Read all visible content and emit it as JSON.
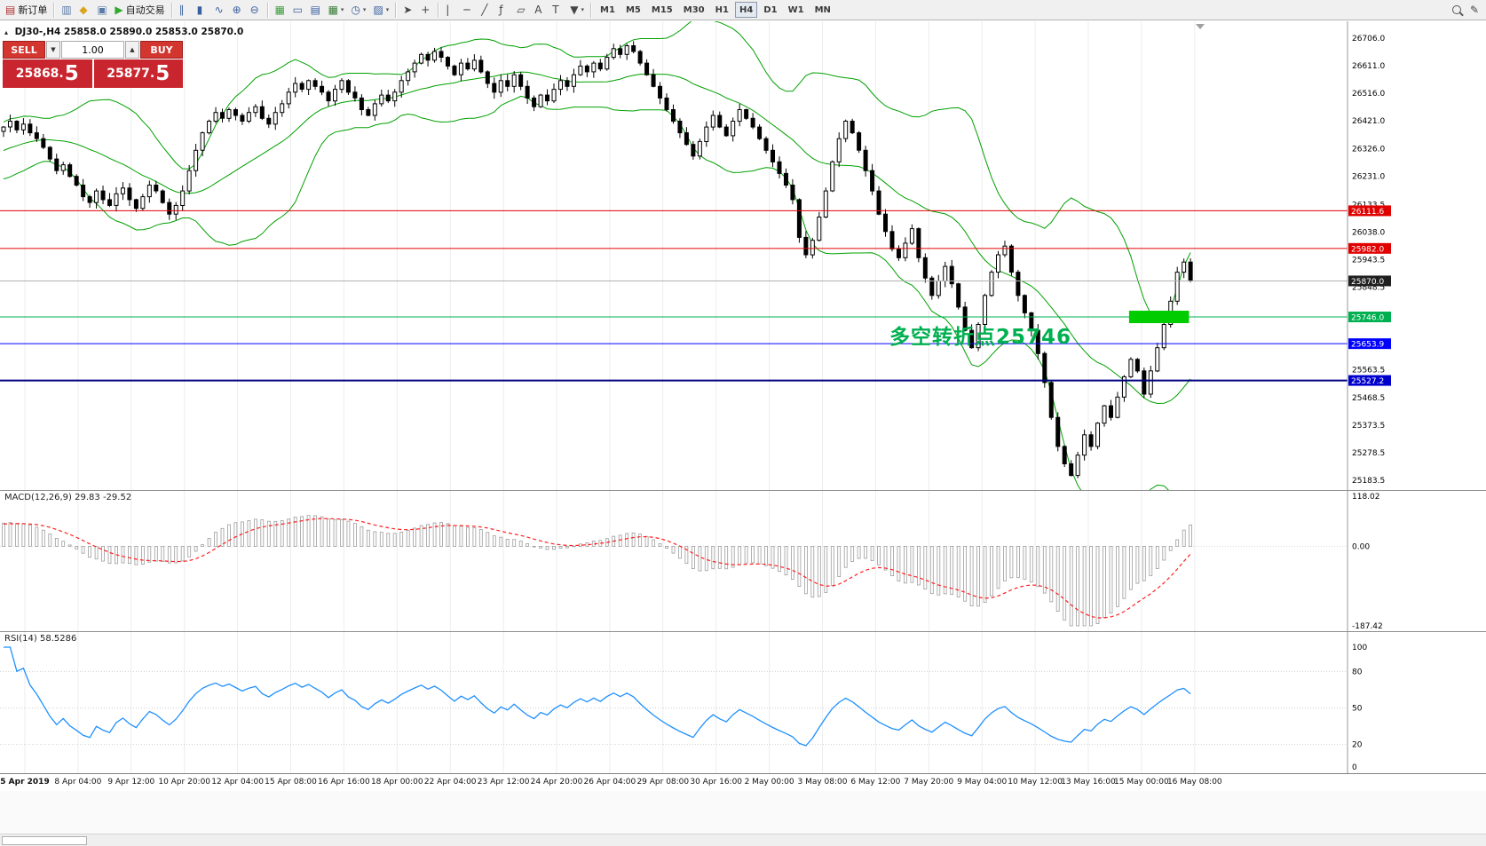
{
  "toolbar": {
    "timeframes": [
      "M1",
      "M5",
      "M15",
      "M30",
      "H1",
      "H4",
      "D1",
      "W1",
      "MN"
    ],
    "active_timeframe": "H4",
    "items": [
      {
        "type": "button",
        "name": "new-order-button",
        "glyph": "▤",
        "glyph_color": "#b03030",
        "label": "新订单"
      },
      {
        "type": "sep"
      },
      {
        "type": "button",
        "name": "market-watch-button",
        "glyph": "▥",
        "glyph_color": "#5a7aa8"
      },
      {
        "type": "button",
        "name": "profiles-button",
        "glyph": "◆",
        "glyph_color": "#d9a520"
      },
      {
        "type": "button",
        "name": "data-window-button",
        "glyph": "▣",
        "glyph_color": "#5a7aa8"
      },
      {
        "type": "button",
        "name": "auto-trading-button",
        "glyph": "▶",
        "glyph_color": "#2faa2f",
        "label": "自动交易"
      },
      {
        "type": "sep"
      },
      {
        "type": "button",
        "name": "bar-chart-button",
        "glyph": "∥",
        "glyph_color": "#3a5fa0"
      },
      {
        "type": "button",
        "name": "candlestick-chart-button",
        "glyph": "▮",
        "glyph_color": "#3a5fa0"
      },
      {
        "type": "button",
        "name": "line-chart-button",
        "glyph": "∿",
        "glyph_color": "#3a5fa0"
      },
      {
        "type": "button",
        "name": "zoom-in-button",
        "glyph": "⊕",
        "glyph_color": "#3a5fa0"
      },
      {
        "type": "button",
        "name": "zoom-out-button",
        "glyph": "⊖",
        "glyph_color": "#3a5fa0"
      },
      {
        "type": "sep"
      },
      {
        "type": "button",
        "name": "tile-windows-button",
        "glyph": "▦",
        "glyph_color": "#3f9e3f"
      },
      {
        "type": "button",
        "name": "cascade-windows-button",
        "glyph": "▭",
        "glyph_color": "#3a5fa0"
      },
      {
        "type": "button",
        "name": "tile-horizontally-button",
        "glyph": "▤",
        "glyph_color": "#3a5fa0"
      },
      {
        "type": "button",
        "name": "new-chart-button",
        "glyph": "▦",
        "glyph_color": "#3a7f3a",
        "caret": true
      },
      {
        "type": "button",
        "name": "periods-button",
        "glyph": "◷",
        "glyph_color": "#3a5fa0",
        "caret": true
      },
      {
        "type": "button",
        "name": "templates-button",
        "glyph": "▨",
        "glyph_color": "#3a5fa0",
        "caret": true
      },
      {
        "type": "sep"
      },
      {
        "type": "button",
        "name": "cursor-button",
        "glyph": "➤",
        "glyph_color": "#444"
      },
      {
        "type": "button",
        "name": "crosshair-button",
        "glyph": "+",
        "glyph_color": "#444"
      },
      {
        "type": "sep"
      },
      {
        "type": "button",
        "name": "vertical-line-button",
        "glyph": "|",
        "glyph_color": "#444"
      },
      {
        "type": "button",
        "name": "horizontal-line-button",
        "glyph": "─",
        "glyph_color": "#444"
      },
      {
        "type": "button",
        "name": "trendline-button",
        "glyph": "╱",
        "glyph_color": "#444"
      },
      {
        "type": "button",
        "name": "fibonacci-button",
        "glyph": "ƒ",
        "glyph_color": "#444"
      },
      {
        "type": "button",
        "name": "channel-button",
        "glyph": "▱",
        "glyph_color": "#444"
      },
      {
        "type": "button",
        "name": "text-button",
        "glyph": "A",
        "glyph_color": "#444"
      },
      {
        "type": "button",
        "name": "label-button",
        "glyph": "T",
        "glyph_color": "#444"
      },
      {
        "type": "button",
        "name": "arrows-button",
        "glyph": "▼",
        "glyph_color": "#444",
        "caret": true
      },
      {
        "type": "sep"
      },
      {
        "type": "timeframes"
      },
      {
        "type": "spacer"
      },
      {
        "type": "search"
      },
      {
        "type": "button",
        "name": "edit-button",
        "glyph": "✎",
        "glyph_color": "#444"
      }
    ]
  },
  "chart_header": {
    "collapse_marker": "▴",
    "symbol": "DJ30-,H4",
    "ohlc": "25858.0 25890.0 25853.0 25870.0"
  },
  "trade_panel": {
    "sell_label": "SELL",
    "buy_label": "BUY",
    "volume": "1.00",
    "spin_down": "▼",
    "spin_up": "▲",
    "sell_price_main": "25868.",
    "sell_price_big": "5",
    "buy_price_main": "25877.",
    "buy_price_big": "5",
    "button_color": "#d3352f",
    "price_panel_color": "#c9252e"
  },
  "annotation": {
    "text": "多空转折点25746",
    "color": "#00b050"
  },
  "chart_data": {
    "type": "candlestick",
    "symbol": "DJ30-",
    "timeframe": "H4",
    "price_axis": {
      "max": 26706.0,
      "min": 25183.5,
      "labels": [
        "26706.0",
        "26611.0",
        "26516.0",
        "26421.0",
        "26326.0",
        "26231.0",
        "26133.5",
        "26038.0",
        "25943.5",
        "25848.5",
        "25753.5",
        "25658.5",
        "25563.5",
        "25468.5",
        "25373.5",
        "25278.5",
        "25183.5"
      ]
    },
    "closes": [
      26400,
      26420,
      26390,
      26410,
      26380,
      26360,
      26330,
      26290,
      26250,
      26270,
      26230,
      26200,
      26160,
      26140,
      26180,
      26150,
      26130,
      26170,
      26190,
      26150,
      26120,
      26160,
      26200,
      26180,
      26140,
      26100,
      26130,
      26180,
      26250,
      26320,
      26380,
      26420,
      26450,
      26430,
      26460,
      26440,
      26420,
      26450,
      26470,
      26430,
      26410,
      26450,
      26480,
      26520,
      26550,
      26530,
      26560,
      26540,
      26520,
      26490,
      26530,
      26560,
      26520,
      26500,
      26460,
      26440,
      26480,
      26510,
      26490,
      26520,
      26560,
      26590,
      26620,
      26650,
      26630,
      26660,
      26640,
      26610,
      26580,
      26620,
      26600,
      26630,
      26590,
      26550,
      26520,
      26560,
      26540,
      26580,
      26540,
      26500,
      26470,
      26510,
      26490,
      26530,
      26560,
      26540,
      26580,
      26610,
      26590,
      26620,
      26600,
      26640,
      26670,
      26650,
      26680,
      26660,
      26620,
      26580,
      26540,
      26500,
      26460,
      26420,
      26380,
      26340,
      26300,
      26350,
      26400,
      26440,
      26400,
      26370,
      26420,
      26460,
      26430,
      26400,
      26360,
      26320,
      26280,
      26240,
      26200,
      26150,
      26020,
      25960,
      26010,
      26090,
      26180,
      26280,
      26360,
      26420,
      26380,
      26320,
      26250,
      26180,
      26100,
      26040,
      25980,
      25950,
      26000,
      26050,
      25950,
      25880,
      25820,
      25870,
      25920,
      25860,
      25780,
      25700,
      25640,
      25720,
      25820,
      25900,
      25960,
      25990,
      25900,
      25820,
      25760,
      25700,
      25620,
      25520,
      25400,
      25300,
      25240,
      25200,
      25270,
      25340,
      25300,
      25380,
      25440,
      25400,
      25470,
      25540,
      25600,
      25560,
      25480,
      25560,
      25640,
      25720,
      25800,
      25900,
      25935,
      25870
    ],
    "bollinger": {
      "period": 20,
      "deviation": 2,
      "color": "#00a000"
    },
    "hlines": [
      {
        "text": "26111.6",
        "price": 26111.6,
        "color": "#e00000",
        "width": 1
      },
      {
        "text": "25982.0",
        "price": 25982.0,
        "color": "#e00000",
        "width": 1
      },
      {
        "text": "25870.0",
        "price": 25870.0,
        "color": "#b0b0b0",
        "label_bg": "#1f1f1f",
        "width": 1
      },
      {
        "text": "25746.0",
        "price": 25746.0,
        "color": "#00b050",
        "width": 1
      },
      {
        "text": "25653.9",
        "price": 25653.9,
        "color": "#0000ff",
        "width": 1
      },
      {
        "text": "25527.2",
        "price": 25527.2,
        "color": "#000080",
        "label_bg": "#0000cc",
        "width": 2
      }
    ],
    "highlight_rect": {
      "from_index": 170,
      "to_index": 178.5,
      "price": 25746,
      "color": "#00cc00"
    },
    "time_labels": [
      "5 Apr 2019",
      "8 Apr 04:00",
      "9 Apr 12:00",
      "10 Apr 20:00",
      "12 Apr 04:00",
      "15 Apr 08:00",
      "16 Apr 16:00",
      "18 Apr 00:00",
      "22 Apr 04:00",
      "23 Apr 12:00",
      "24 Apr 20:00",
      "26 Apr 04:00",
      "29 Apr 08:00",
      "30 Apr 16:00",
      "2 May 00:00",
      "3 May 08:00",
      "6 May 12:00",
      "7 May 20:00",
      "9 May 04:00",
      "10 May 12:00",
      "13 May 16:00",
      "15 May 00:00",
      "16 May 08:00"
    ],
    "macd": {
      "name": "MACD(12,26,9)",
      "values": "29.83 -29.52",
      "fast": 12,
      "slow": 26,
      "signal": 9,
      "axis_max": "118.02",
      "axis_zero": "0.00",
      "axis_min": "-187.42",
      "signal_color": "#ff2020",
      "histogram_color": "#9c9c9c"
    },
    "rsi": {
      "name": "RSI(14)",
      "value": "58.5286",
      "period": 14,
      "levels": [
        100,
        80,
        50,
        20,
        0
      ],
      "line_color": "#1e90ff"
    }
  }
}
